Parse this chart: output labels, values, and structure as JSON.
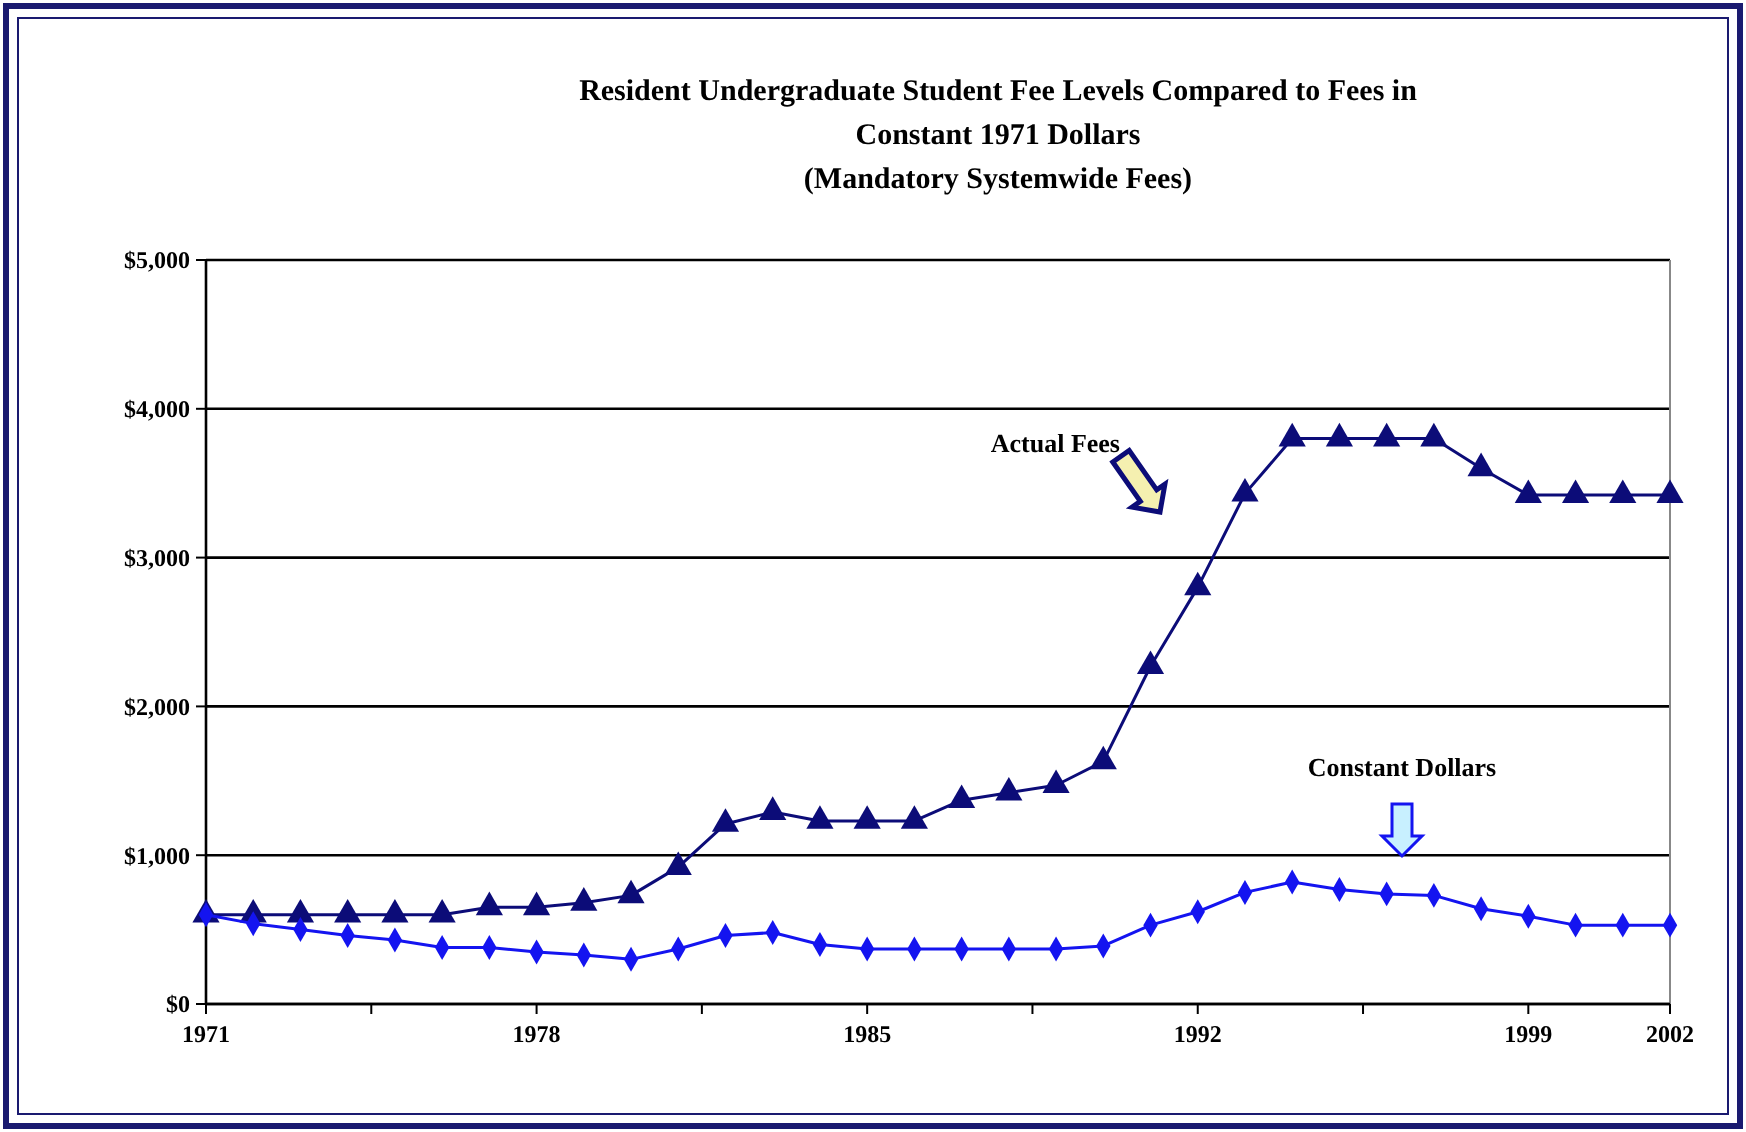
{
  "chart_data": {
    "type": "line",
    "title": "Resident Undergraduate Student Fee Levels Compared to Fees in\nConstant 1971 Dollars\n(Mandatory Systemwide Fees)",
    "x": [
      1971,
      1972,
      1973,
      1974,
      1975,
      1976,
      1977,
      1978,
      1979,
      1980,
      1981,
      1982,
      1983,
      1984,
      1985,
      1986,
      1987,
      1988,
      1989,
      1990,
      1991,
      1992,
      1993,
      1994,
      1995,
      1996,
      1997,
      1998,
      1999,
      2000,
      2001,
      2002
    ],
    "series": [
      {
        "color": "#0c0c78",
        "marker": "triangle",
        "values": [
          600,
          600,
          600,
          600,
          600,
          600,
          650,
          650,
          680,
          730,
          920,
          1210,
          1290,
          1230,
          1230,
          1230,
          1370,
          1420,
          1470,
          1630,
          2270,
          2800,
          3430,
          3800,
          3800,
          3800,
          3800,
          3600,
          3420,
          3420,
          3420,
          3420
        ]
      },
      {
        "color": "#1414f0",
        "marker": "diamond",
        "values": [
          600,
          540,
          500,
          460,
          430,
          380,
          380,
          350,
          330,
          300,
          370,
          460,
          480,
          400,
          370,
          370,
          370,
          370,
          370,
          390,
          530,
          620,
          750,
          820,
          770,
          740,
          730,
          640,
          590,
          530,
          530,
          530
        ]
      }
    ],
    "xlim": [
      1971,
      2002
    ],
    "xticks": [
      1971,
      {
        "value": 1974.5,
        "label": null
      },
      1978,
      {
        "value": 1981.5,
        "label": null
      },
      1985,
      {
        "value": 1988.5,
        "label": null
      },
      1992,
      {
        "value": 1995.5,
        "label": null
      },
      1999,
      2002
    ],
    "ylim": [
      0,
      5000
    ],
    "yticks": [
      {
        "value": 0,
        "label": "$0"
      },
      {
        "value": 1000,
        "label": "$1,000"
      },
      {
        "value": 2000,
        "label": "$2,000"
      },
      {
        "value": 3000,
        "label": "$3,000"
      },
      {
        "value": 4000,
        "label": "$4,000"
      },
      {
        "value": 5000,
        "label": "$5,000"
      }
    ],
    "grid": "y",
    "annotations": [
      "Actual Fees",
      "Constant Dollars"
    ]
  }
}
